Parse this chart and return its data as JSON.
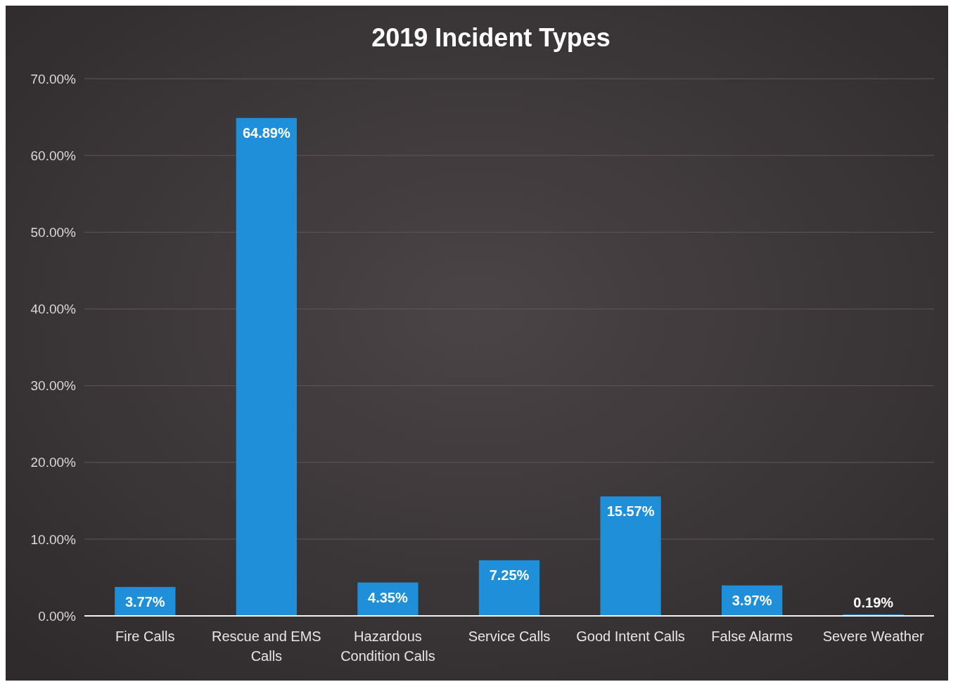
{
  "chart_data": {
    "type": "bar",
    "title": "2019 Incident Types",
    "categories": [
      "Fire Calls",
      "Rescue and EMS Calls",
      "Hazardous Condition Calls",
      "Service Calls",
      "Good Intent Calls",
      "False Alarms",
      "Severe Weather"
    ],
    "values": [
      3.77,
      64.89,
      4.35,
      7.25,
      15.57,
      3.97,
      0.19
    ],
    "value_labels": [
      "3.77%",
      "64.89%",
      "4.35%",
      "7.25%",
      "15.57%",
      "3.97%",
      "0.19%"
    ],
    "color": "#1e8fd8",
    "ylim": [
      0,
      70
    ],
    "yticks": [
      {
        "value": 0,
        "label": "0.00%"
      },
      {
        "value": 10,
        "label": "10.00%"
      },
      {
        "value": 20,
        "label": "20.00%"
      },
      {
        "value": 30,
        "label": "30.00%"
      },
      {
        "value": 40,
        "label": "40.00%"
      },
      {
        "value": 50,
        "label": "50.00%"
      },
      {
        "value": 60,
        "label": "60.00%"
      },
      {
        "value": 70,
        "label": "70.00%"
      }
    ],
    "grid": "y"
  }
}
